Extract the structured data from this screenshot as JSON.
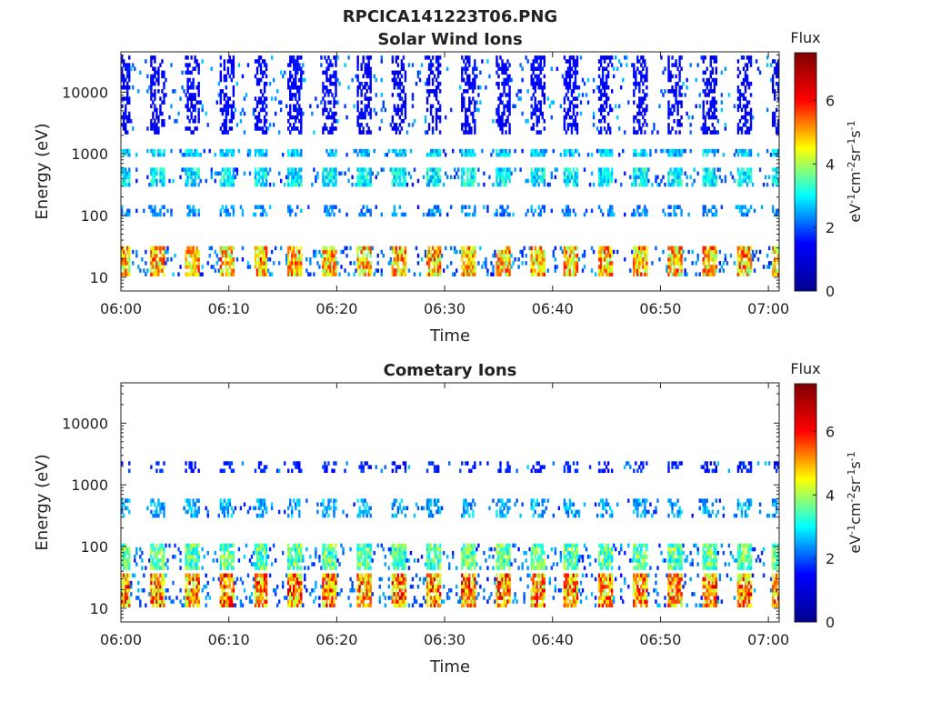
{
  "figure": {
    "title": "RPCICA141223T06.PNG"
  },
  "colors": {
    "frame": "#222222",
    "jet_stops": [
      "#00008f",
      "#0000ff",
      "#00ffff",
      "#ffff00",
      "#ff0000",
      "#800000"
    ]
  },
  "chart_data": [
    {
      "type": "heatmap",
      "title": "Solar Wind Ions",
      "xlabel": "Time",
      "ylabel": "Energy (eV)",
      "xlim": [
        "06:00",
        "07:01"
      ],
      "ylim": [
        6,
        45000
      ],
      "yscale": "log",
      "xticks": [
        "06:00",
        "06:10",
        "06:20",
        "06:30",
        "06:40",
        "06:50",
        "07:00"
      ],
      "yticks": [
        10,
        100,
        1000,
        10000
      ],
      "colorbar": {
        "label": "Flux",
        "unit": "eV-1cm-2sr-1s-1",
        "range": [
          0,
          7.5
        ],
        "ticks": [
          0,
          2,
          4,
          6
        ]
      },
      "pulse_period_min": 3.2,
      "bands": [
        {
          "energy_range_eV": [
            10,
            30
          ],
          "peak_flux": 6.5
        },
        {
          "energy_range_eV": [
            300,
            600
          ],
          "peak_flux": 3.5
        },
        {
          "energy_range_eV": [
            900,
            1200
          ],
          "peak_flux": 3.2
        },
        {
          "energy_range_eV": [
            100,
            150
          ],
          "peak_flux": 2.5
        },
        {
          "energy_range_eV": [
            2000,
            40000
          ],
          "peak_flux": 1.2
        }
      ]
    },
    {
      "type": "heatmap",
      "title": "Cometary Ions",
      "xlabel": "Time",
      "ylabel": "Energy (eV)",
      "xlim": [
        "06:00",
        "07:01"
      ],
      "ylim": [
        6,
        45000
      ],
      "yscale": "log",
      "xticks": [
        "06:00",
        "06:10",
        "06:20",
        "06:30",
        "06:40",
        "06:50",
        "07:00"
      ],
      "yticks": [
        10,
        100,
        1000,
        10000
      ],
      "colorbar": {
        "label": "Flux",
        "unit": "eV-1cm-2sr-1s-1",
        "range": [
          0,
          7.5
        ],
        "ticks": [
          0,
          2,
          4,
          6
        ]
      },
      "pulse_period_min": 3.2,
      "bands": [
        {
          "energy_range_eV": [
            10,
            35
          ],
          "peak_flux": 7.0
        },
        {
          "energy_range_eV": [
            40,
            120
          ],
          "peak_flux": 4.5
        },
        {
          "energy_range_eV": [
            300,
            600
          ],
          "peak_flux": 2.8
        },
        {
          "energy_range_eV": [
            1500,
            2500
          ],
          "peak_flux": 1.5
        }
      ]
    }
  ]
}
